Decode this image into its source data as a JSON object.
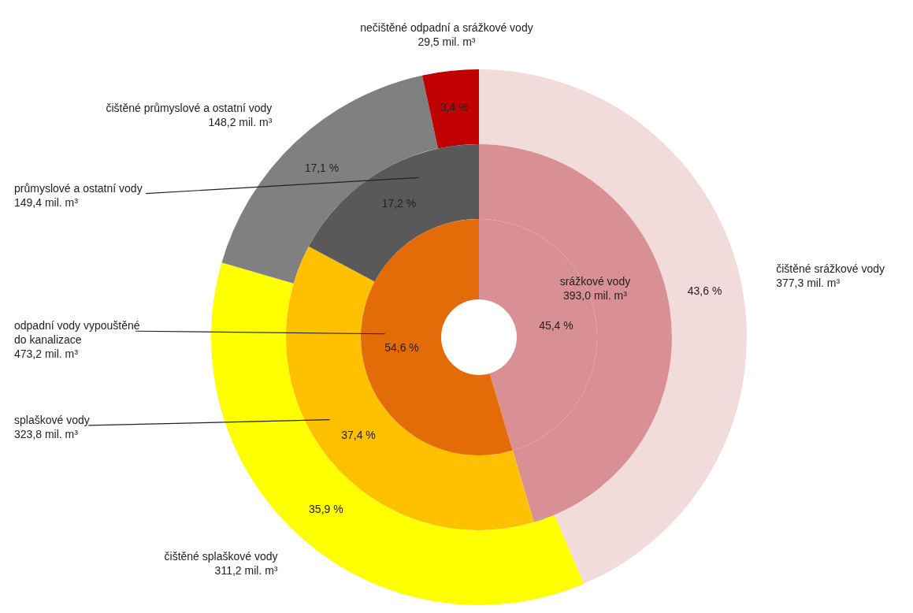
{
  "chart_data": [
    {
      "type": "donut",
      "categories": [
        "čištěné srážkové vody\n377,3 mil. m³",
        "čištěné splaškové vody\n311,2 mil. m³",
        "čištěné průmyslové a ostatní vody\n148,2 mil. m³",
        "nečištěné odpadní  a srážkové vody\n29,5 mil. m³"
      ],
      "values": [
        43.6,
        35.9,
        17.1,
        3.4
      ],
      "colors": [
        "#f2dcdb",
        "#ffff00",
        "#808080",
        "#c00000"
      ],
      "value_labels": [
        "43,6 %",
        "35,9 %",
        "17,1 %",
        "3,4 %"
      ]
    },
    {
      "type": "donut",
      "categories": [
        null,
        "splaškové vody\n323,8 mil. m³",
        "průmyslové a ostatní vody\n149,4 mil. m³"
      ],
      "values": [
        45.4,
        37.4,
        17.2
      ],
      "colors": [
        "#d99094",
        "#ffc000",
        "#595959"
      ],
      "value_labels": [
        null,
        "37,4 %",
        "17,2 %"
      ]
    },
    {
      "type": "donut",
      "categories": [
        "srážkové vody\n393,0 mil. m³",
        "odpadní vody vypouštěné\ndo kanalizace\n473,2 mil. m³"
      ],
      "values": [
        45.4,
        54.6
      ],
      "colors": [
        "#d99094",
        "#e36c09"
      ],
      "value_labels": [
        "45,4 %",
        "54,6 %"
      ]
    }
  ]
}
